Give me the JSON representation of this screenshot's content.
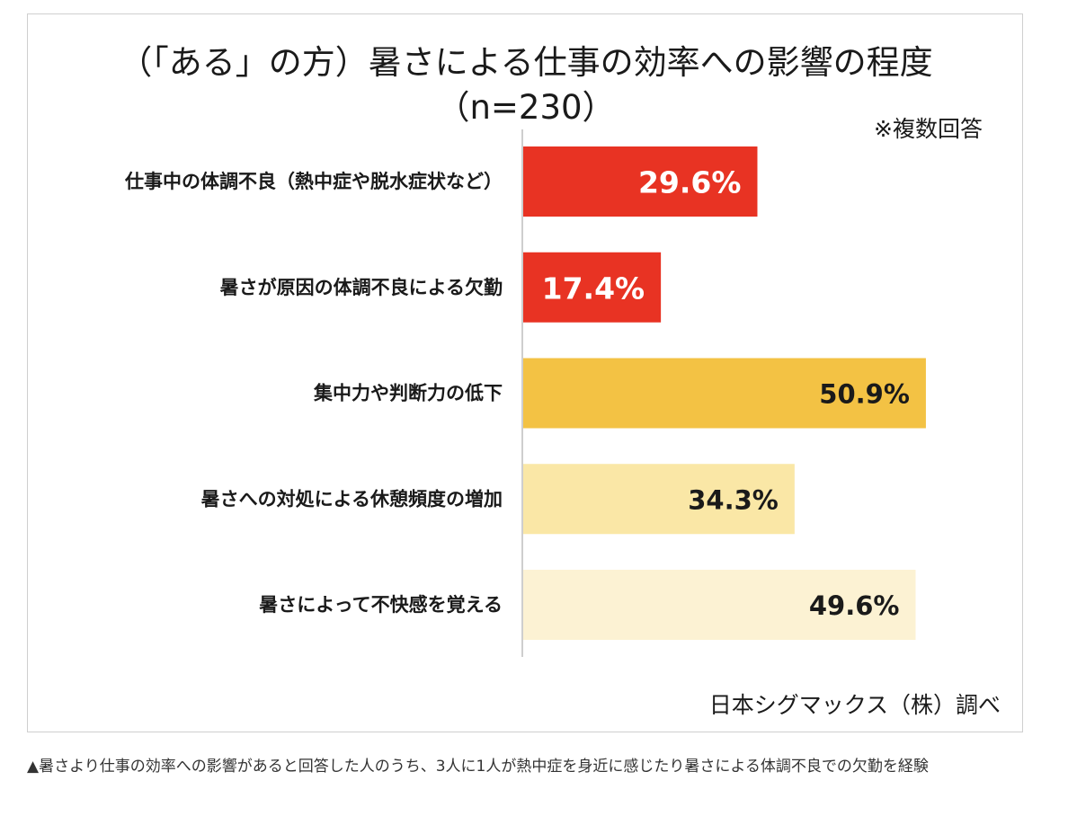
{
  "chart_data": {
    "type": "bar",
    "orientation": "horizontal",
    "title": "（「ある」の方）暑さによる仕事の効率への影響の程度",
    "subtitle": "（n=230）",
    "note": "※複数回答",
    "categories": [
      "仕事中の体調不良（熱中症や脱水症状など）",
      "暑さが原因の体調不良による欠勤",
      "集中力や判断力の低下",
      "暑さへの対処による休憩頻度の増加",
      "暑さによって不快感を覚える"
    ],
    "values": [
      29.6,
      17.4,
      50.9,
      34.3,
      49.6
    ],
    "value_labels": [
      "29.6%",
      "17.4%",
      "50.9%",
      "34.3%",
      "49.6%"
    ],
    "bar_colors": [
      "#e83323",
      "#e83323",
      "#f3c244",
      "#fae7a6",
      "#fcf2d3"
    ],
    "value_label_colors": [
      "#ffffff",
      "#ffffff",
      "#1a1a1a",
      "#1a1a1a",
      "#1a1a1a"
    ],
    "xlim": [
      0,
      60
    ],
    "grid": false,
    "legend": "none",
    "source": "日本シグマックス（株）調べ"
  },
  "caption": "▲暑さより仕事の効率への影響があると回答した人のうち、3人に1人が熱中症を身近に感じたり暑さによる体調不良での欠勤を経験"
}
